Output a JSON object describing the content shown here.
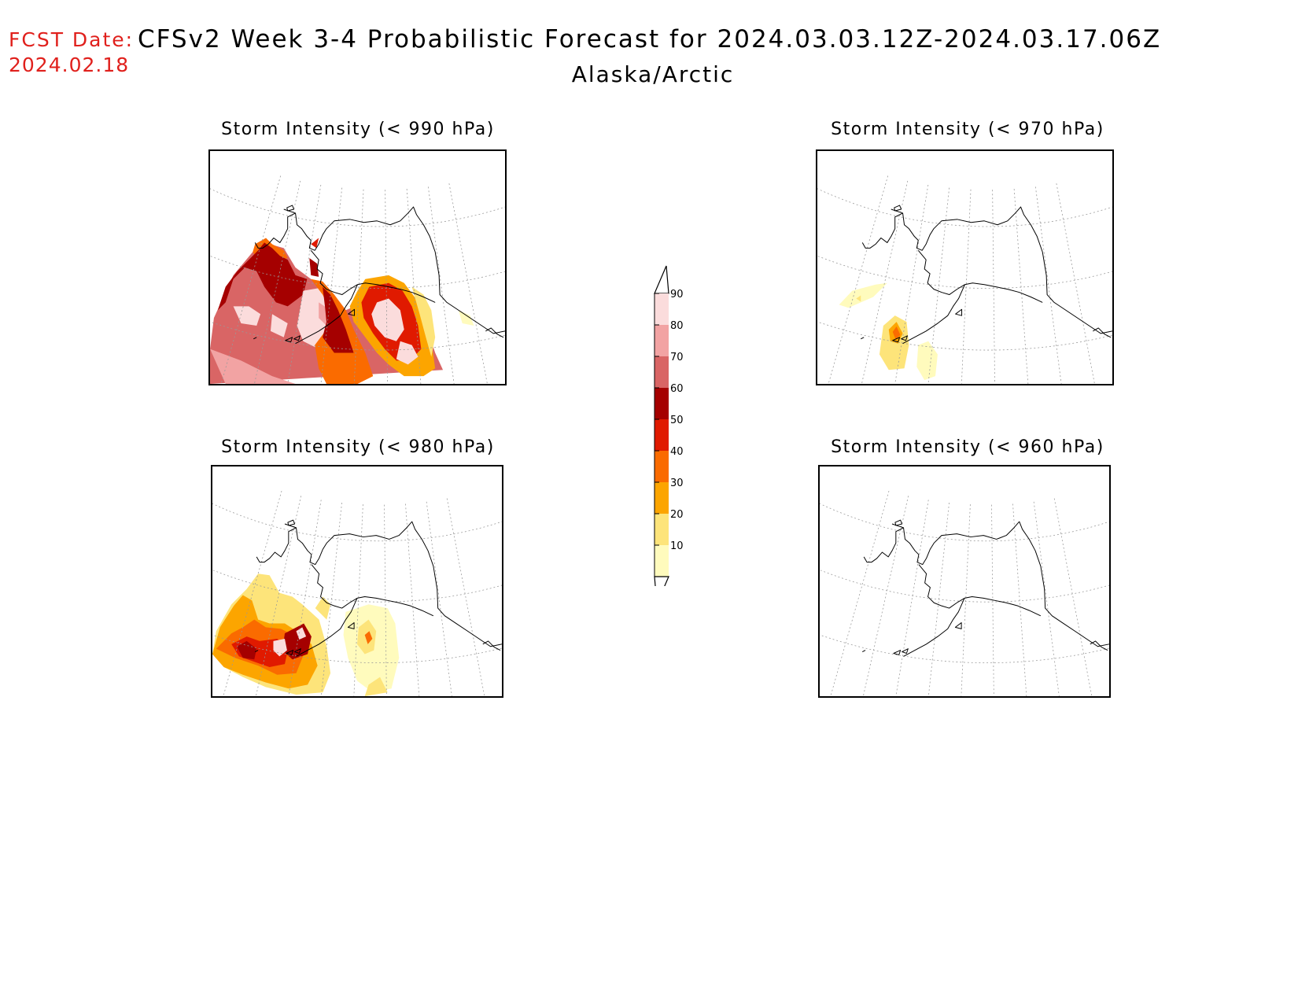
{
  "header": {
    "fcst_label": "FCST Date:",
    "fcst_date": "2024.02.18",
    "title": "CFSv2 Week 3-4 Probabilistic Forecast for 2024.03.03.12Z-2024.03.17.06Z",
    "subtitle": "Alaska/Arctic"
  },
  "panels": [
    {
      "title": "Storm Intensity (< 990 hPa)",
      "intensity": "high"
    },
    {
      "title": "Storm Intensity (< 970 hPa)",
      "intensity": "low"
    },
    {
      "title": "Storm Intensity (< 980 hPa)",
      "intensity": "medium"
    },
    {
      "title": "Storm Intensity (< 960 hPa)",
      "intensity": "none"
    }
  ],
  "colorbar": {
    "levels": [
      "10",
      "20",
      "30",
      "40",
      "50",
      "60",
      "70",
      "80",
      "90"
    ],
    "colors": [
      "#fffbbd",
      "#fde47a",
      "#fca500",
      "#fa6b00",
      "#e01a00",
      "#a50000",
      "#d96565",
      "#f2a3a3",
      "#fbdcdc"
    ]
  }
}
